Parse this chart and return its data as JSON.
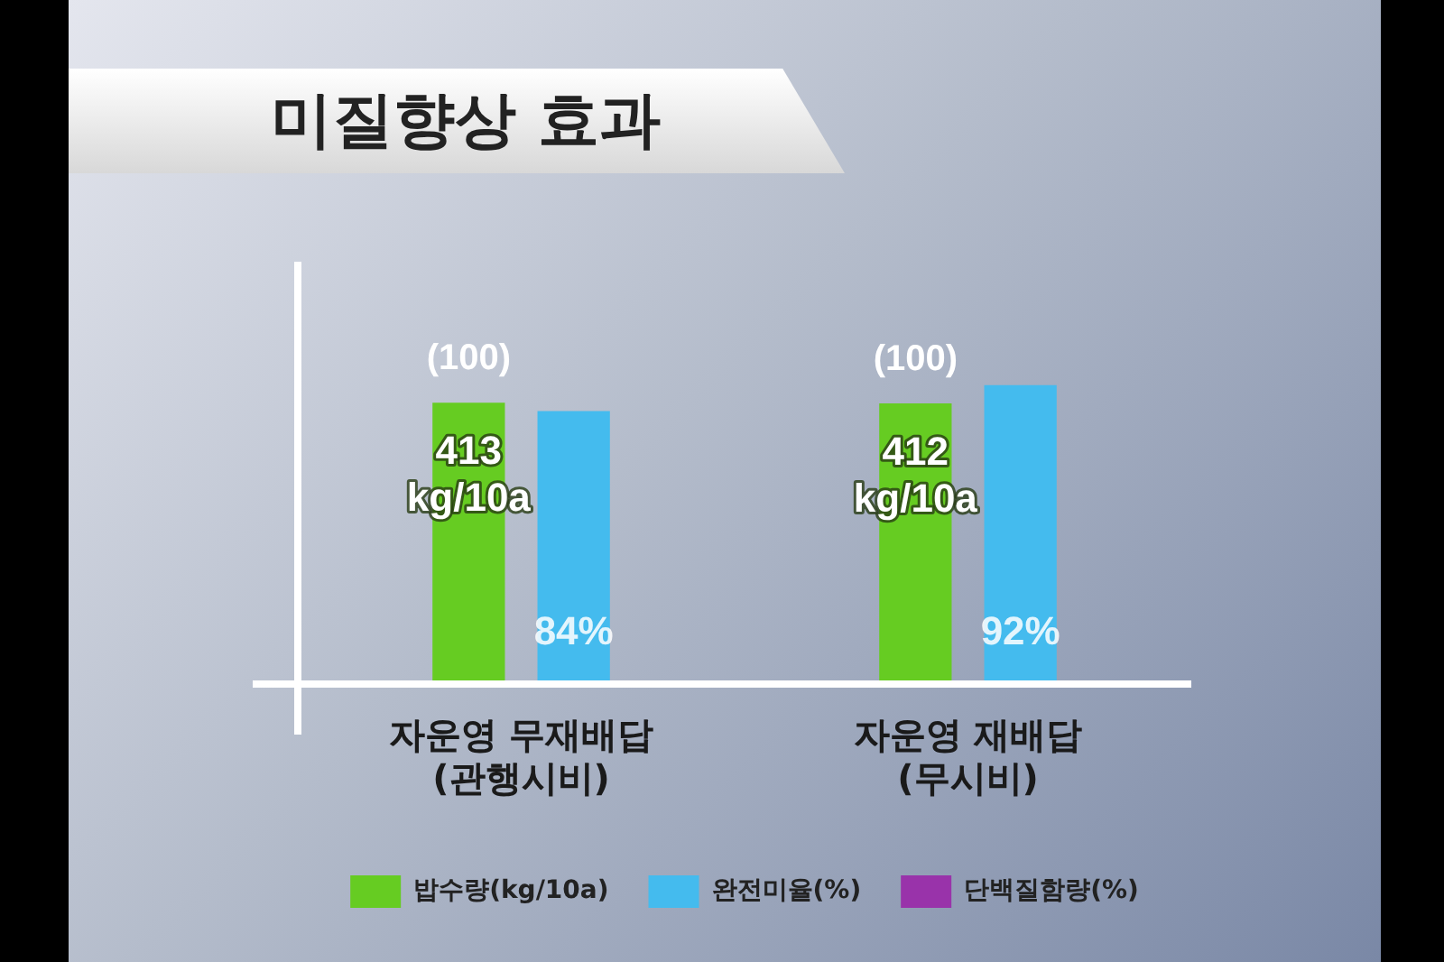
{
  "chart_data": {
    "type": "bar",
    "title": "미질향상 효과",
    "categories": [
      "자운영 무재배답\n(관행시비)",
      "자운영 재배답\n(무시비)"
    ],
    "series": [
      {
        "name": "밥수량(kg/10a)",
        "color": "#66cc22",
        "values": [
          413,
          412
        ],
        "value_labels": [
          "413 kg/10a",
          "412 kg/10a"
        ]
      },
      {
        "name": "완전미율(%)",
        "color": "#44bbee",
        "values": [
          84,
          92
        ],
        "value_labels": [
          "84%",
          "92%"
        ],
        "axis": "y2"
      },
      {
        "name": "단백질함량(%)",
        "color": "#9933aa",
        "values": [
          null,
          null
        ],
        "axis": "y2"
      }
    ],
    "ylim": [
      0,
      620
    ],
    "y2lim": [
      0,
      130
    ],
    "tick_labels": "x",
    "annotations": [
      "(100)",
      "(100)"
    ],
    "legend": "bottom",
    "grid": false
  }
}
